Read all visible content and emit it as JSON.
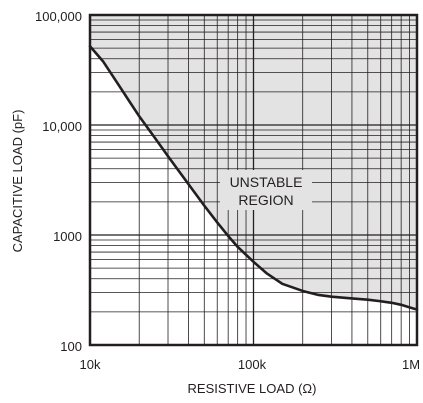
{
  "chart_data": {
    "type": "line",
    "title": "",
    "xlabel": "RESISTIVE LOAD (Ω)",
    "ylabel": "CAPACITIVE LOAD (pF)",
    "x_scale": "log",
    "y_scale": "log",
    "xlim": [
      10000,
      1000000
    ],
    "ylim": [
      100,
      100000
    ],
    "x_tick_values": [
      10000,
      100000,
      1000000
    ],
    "x_tick_labels": [
      "10k",
      "100k",
      "1M"
    ],
    "y_tick_values": [
      100,
      1000,
      10000,
      100000
    ],
    "y_tick_labels": [
      "100",
      "1000",
      "10,000",
      "100,000"
    ],
    "grid": true,
    "series": [
      {
        "x": [
          10000,
          12000,
          15000,
          20000,
          25000,
          30000,
          40000,
          50000,
          60000,
          70000,
          80000,
          100000,
          120000,
          150000,
          200000,
          250000,
          300000,
          400000,
          500000,
          600000,
          700000,
          800000,
          900000,
          1000000
        ],
        "y": [
          52000,
          38000,
          23000,
          12000,
          7600,
          5200,
          2900,
          1850,
          1300,
          980,
          780,
          570,
          450,
          360,
          310,
          285,
          275,
          265,
          258,
          250,
          242,
          232,
          220,
          210
        ]
      }
    ],
    "shaded_region": {
      "label_lines": [
        "UNSTABLE",
        "REGION"
      ],
      "fill_color": "#e3e3e4"
    },
    "colors": {
      "curve": "#231f20",
      "grid": "#231f20",
      "frame": "#231f20"
    }
  }
}
